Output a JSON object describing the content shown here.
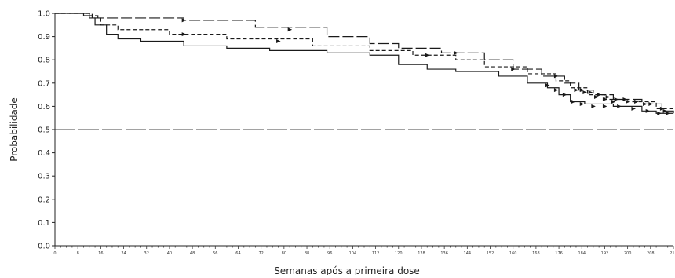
{
  "chart_data": {
    "type": "line",
    "title": "",
    "xlabel": "Semanas após a primeira dose",
    "ylabel": "Probabilidade",
    "xlim": [
      0,
      216
    ],
    "ylim": [
      0,
      1.0
    ],
    "yticks": [
      0.0,
      0.1,
      0.2,
      0.3,
      0.4,
      0.5,
      0.6,
      0.7,
      0.8,
      0.9,
      1.0
    ],
    "ytick_labels": [
      "0.0",
      "0.1",
      "0.2",
      "0.3",
      "0.4",
      "0.5",
      "0.6",
      "0.7",
      "0.8",
      "0.9",
      "1.0"
    ],
    "xticks": [
      0,
      8,
      16,
      24,
      32,
      40,
      48,
      56,
      64,
      72,
      80,
      88,
      96,
      104,
      112,
      120,
      128,
      136,
      144,
      152,
      160,
      168,
      176,
      184,
      192,
      200,
      208,
      216
    ],
    "xtick_labels": [
      "0",
      "8",
      "16",
      "24",
      "32",
      "40",
      "48",
      "56",
      "64",
      "72",
      "80",
      "88",
      "96",
      "104",
      "112",
      "120",
      "128",
      "136",
      "144",
      "152",
      "160",
      "168",
      "176",
      "184",
      "192",
      "200",
      "208",
      "216"
    ],
    "grid": false,
    "legend": "none",
    "reference_line": {
      "y": 0.5,
      "style": "long-dash"
    },
    "series": [
      {
        "style": "long-dash",
        "color": "#1a1a1a",
        "steps": [
          [
            0,
            1.0
          ],
          [
            10,
            0.99
          ],
          [
            15,
            0.98
          ],
          [
            45,
            0.97
          ],
          [
            70,
            0.94
          ],
          [
            95,
            0.9
          ],
          [
            110,
            0.87
          ],
          [
            120,
            0.85
          ],
          [
            135,
            0.83
          ],
          [
            150,
            0.8
          ],
          [
            160,
            0.76
          ],
          [
            170,
            0.73
          ],
          [
            178,
            0.7
          ],
          [
            183,
            0.67
          ],
          [
            188,
            0.65
          ],
          [
            195,
            0.63
          ],
          [
            205,
            0.61
          ],
          [
            212,
            0.58
          ],
          [
            216,
            0.57
          ]
        ],
        "censor_marks": [
          [
            45,
            0.97
          ],
          [
            82,
            0.93
          ],
          [
            140,
            0.83
          ],
          [
            175,
            0.73
          ],
          [
            184,
            0.67
          ],
          [
            187,
            0.66
          ],
          [
            190,
            0.65
          ],
          [
            193,
            0.64
          ],
          [
            196,
            0.63
          ],
          [
            199,
            0.63
          ],
          [
            203,
            0.62
          ],
          [
            208,
            0.61
          ],
          [
            213,
            0.58
          ]
        ]
      },
      {
        "style": "short-dash",
        "color": "#1a1a1a",
        "steps": [
          [
            0,
            1.0
          ],
          [
            13,
            0.98
          ],
          [
            16,
            0.95
          ],
          [
            22,
            0.93
          ],
          [
            40,
            0.91
          ],
          [
            60,
            0.89
          ],
          [
            90,
            0.86
          ],
          [
            110,
            0.84
          ],
          [
            125,
            0.82
          ],
          [
            140,
            0.8
          ],
          [
            150,
            0.77
          ],
          [
            165,
            0.74
          ],
          [
            175,
            0.71
          ],
          [
            180,
            0.68
          ],
          [
            186,
            0.65
          ],
          [
            192,
            0.63
          ],
          [
            200,
            0.62
          ],
          [
            210,
            0.59
          ],
          [
            216,
            0.57
          ]
        ],
        "censor_marks": [
          [
            45,
            0.91
          ],
          [
            78,
            0.88
          ],
          [
            130,
            0.82
          ],
          [
            160,
            0.76
          ],
          [
            182,
            0.67
          ],
          [
            185,
            0.66
          ],
          [
            189,
            0.64
          ],
          [
            192,
            0.63
          ],
          [
            195,
            0.62
          ],
          [
            200,
            0.62
          ],
          [
            206,
            0.61
          ],
          [
            212,
            0.59
          ]
        ]
      },
      {
        "style": "solid",
        "color": "#1a1a1a",
        "steps": [
          [
            0,
            1.0
          ],
          [
            12,
            0.98
          ],
          [
            14,
            0.95
          ],
          [
            18,
            0.91
          ],
          [
            22,
            0.89
          ],
          [
            30,
            0.88
          ],
          [
            45,
            0.86
          ],
          [
            60,
            0.85
          ],
          [
            75,
            0.84
          ],
          [
            95,
            0.83
          ],
          [
            110,
            0.82
          ],
          [
            120,
            0.78
          ],
          [
            130,
            0.76
          ],
          [
            140,
            0.75
          ],
          [
            155,
            0.73
          ],
          [
            165,
            0.7
          ],
          [
            172,
            0.68
          ],
          [
            176,
            0.65
          ],
          [
            180,
            0.62
          ],
          [
            185,
            0.61
          ],
          [
            195,
            0.6
          ],
          [
            205,
            0.58
          ],
          [
            210,
            0.57
          ],
          [
            216,
            0.57
          ]
        ],
        "censor_marks": [
          [
            172,
            0.69
          ],
          [
            175,
            0.67
          ],
          [
            178,
            0.65
          ],
          [
            181,
            0.62
          ],
          [
            184,
            0.61
          ],
          [
            188,
            0.6
          ],
          [
            192,
            0.6
          ],
          [
            197,
            0.6
          ],
          [
            202,
            0.59
          ],
          [
            207,
            0.58
          ],
          [
            211,
            0.57
          ],
          [
            214,
            0.57
          ]
        ]
      }
    ]
  }
}
